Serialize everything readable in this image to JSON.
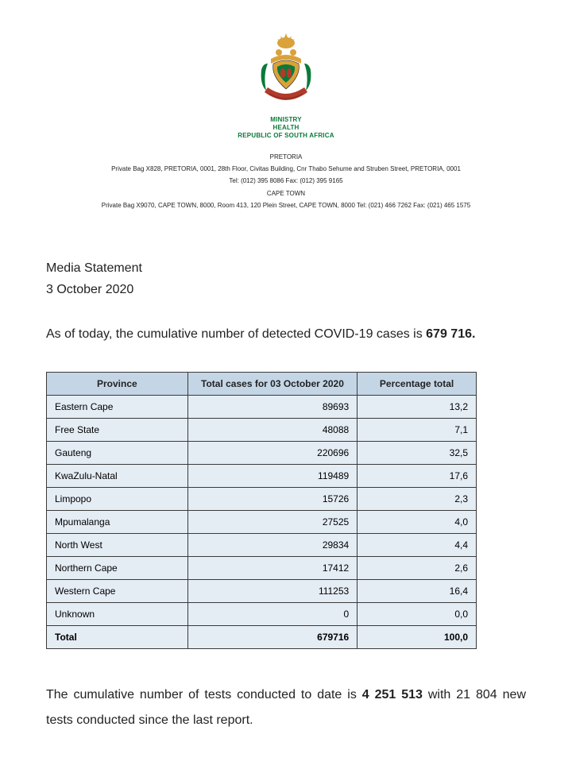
{
  "crest": {
    "green": "#0a7a3a",
    "gold": "#d9a23a",
    "red": "#b23a2a",
    "blue": "#2a4a8a",
    "black": "#1a1a1a"
  },
  "ministry": {
    "line1": "MINISTRY",
    "line2": "HEALTH",
    "line3": "REPUBLIC OF SOUTH AFRICA",
    "color": "#0a7a3a"
  },
  "address": {
    "city1": "PRETORIA",
    "line1": "Private Bag X828, PRETORIA, 0001, 28th Floor, Civitas Building, Cnr Thabo Sehume and Struben Street, PRETORIA, 0001",
    "line2": "Tel: (012) 395 8086 Fax: (012) 395 9165",
    "city2": "CAPE TOWN",
    "line3": "Private Bag X9070, CAPE TOWN, 8000, Room 413, 120 Plein Street, CAPE TOWN, 8000 Tel: (021) 466 7262 Fax: (021) 465 1575"
  },
  "media": {
    "heading": "Media Statement",
    "date": "3 October 2020"
  },
  "lead": {
    "prefix": "As of today, the cumulative number of detected COVID-19 cases is ",
    "value": "679 716",
    "suffix": "."
  },
  "table": {
    "columns": {
      "province": "Province",
      "cases": "Total cases for 03 October 2020",
      "pct": "Percentage total"
    },
    "header_bg": "#c4d6e6",
    "row_bg": "#e4ecf4",
    "border_color": "#3a3a3a",
    "font_size": 12,
    "rows": [
      {
        "province": "Eastern Cape",
        "cases": "89693",
        "pct": "13,2"
      },
      {
        "province": "Free State",
        "cases": "48088",
        "pct": "7,1"
      },
      {
        "province": "Gauteng",
        "cases": "220696",
        "pct": "32,5"
      },
      {
        "province": "KwaZulu-Natal",
        "cases": "119489",
        "pct": "17,6"
      },
      {
        "province": "Limpopo",
        "cases": "15726",
        "pct": "2,3"
      },
      {
        "province": "Mpumalanga",
        "cases": "27525",
        "pct": "4,0"
      },
      {
        "province": "North West",
        "cases": "29834",
        "pct": "4,4"
      },
      {
        "province": "Northern Cape",
        "cases": "17412",
        "pct": "2,6"
      },
      {
        "province": "Western Cape",
        "cases": "111253",
        "pct": "16,4"
      },
      {
        "province": "Unknown",
        "cases": "0",
        "pct": "0,0"
      }
    ],
    "total_row": {
      "province": "Total",
      "cases": "679716",
      "pct": "100,0"
    }
  },
  "footer": {
    "prefix": "The cumulative number of tests conducted to date is ",
    "tests": "4 251 513",
    "mid": " with 21 804 new tests conducted since the last report."
  }
}
